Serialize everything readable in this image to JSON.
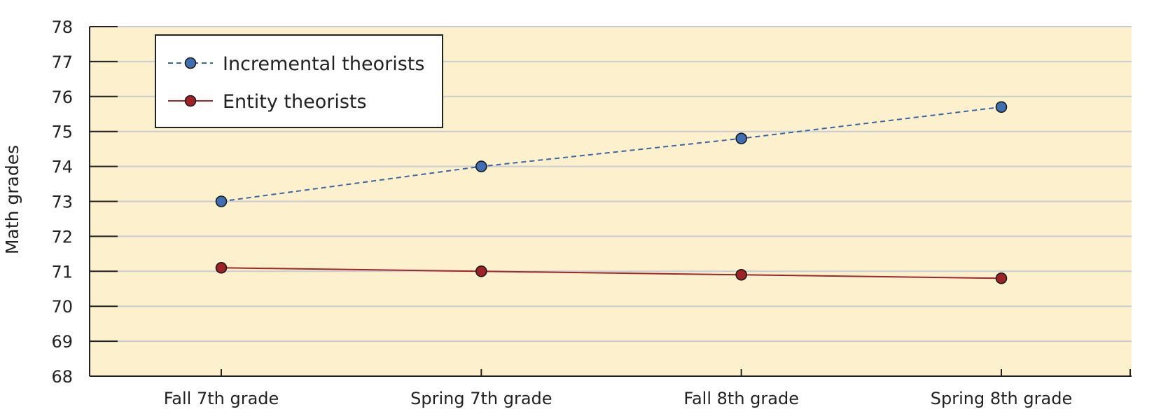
{
  "chart_data": {
    "type": "line",
    "title": "",
    "xlabel": "",
    "ylabel": "Math grades",
    "categories": [
      "Fall 7th grade",
      "Spring 7th grade",
      "Fall 8th grade",
      "Spring 8th grade"
    ],
    "ylim": [
      68,
      78
    ],
    "yticks": [
      68,
      69,
      70,
      71,
      72,
      73,
      74,
      75,
      76,
      77,
      78
    ],
    "grid": true,
    "legend_position": "top-left",
    "plot_background": "#fdf0cc",
    "grid_color": "#c9ccd2",
    "series": [
      {
        "name": "Incremental theorists",
        "values": [
          73.0,
          74.0,
          74.8,
          75.7
        ],
        "line_color": "#3a66a8",
        "marker_color": "#3f6fb2",
        "line_style": "dashed"
      },
      {
        "name": "Entity theorists",
        "values": [
          71.1,
          71.0,
          70.9,
          70.8
        ],
        "line_color": "#a3262a",
        "marker_color": "#9e2327",
        "line_style": "solid"
      }
    ]
  }
}
